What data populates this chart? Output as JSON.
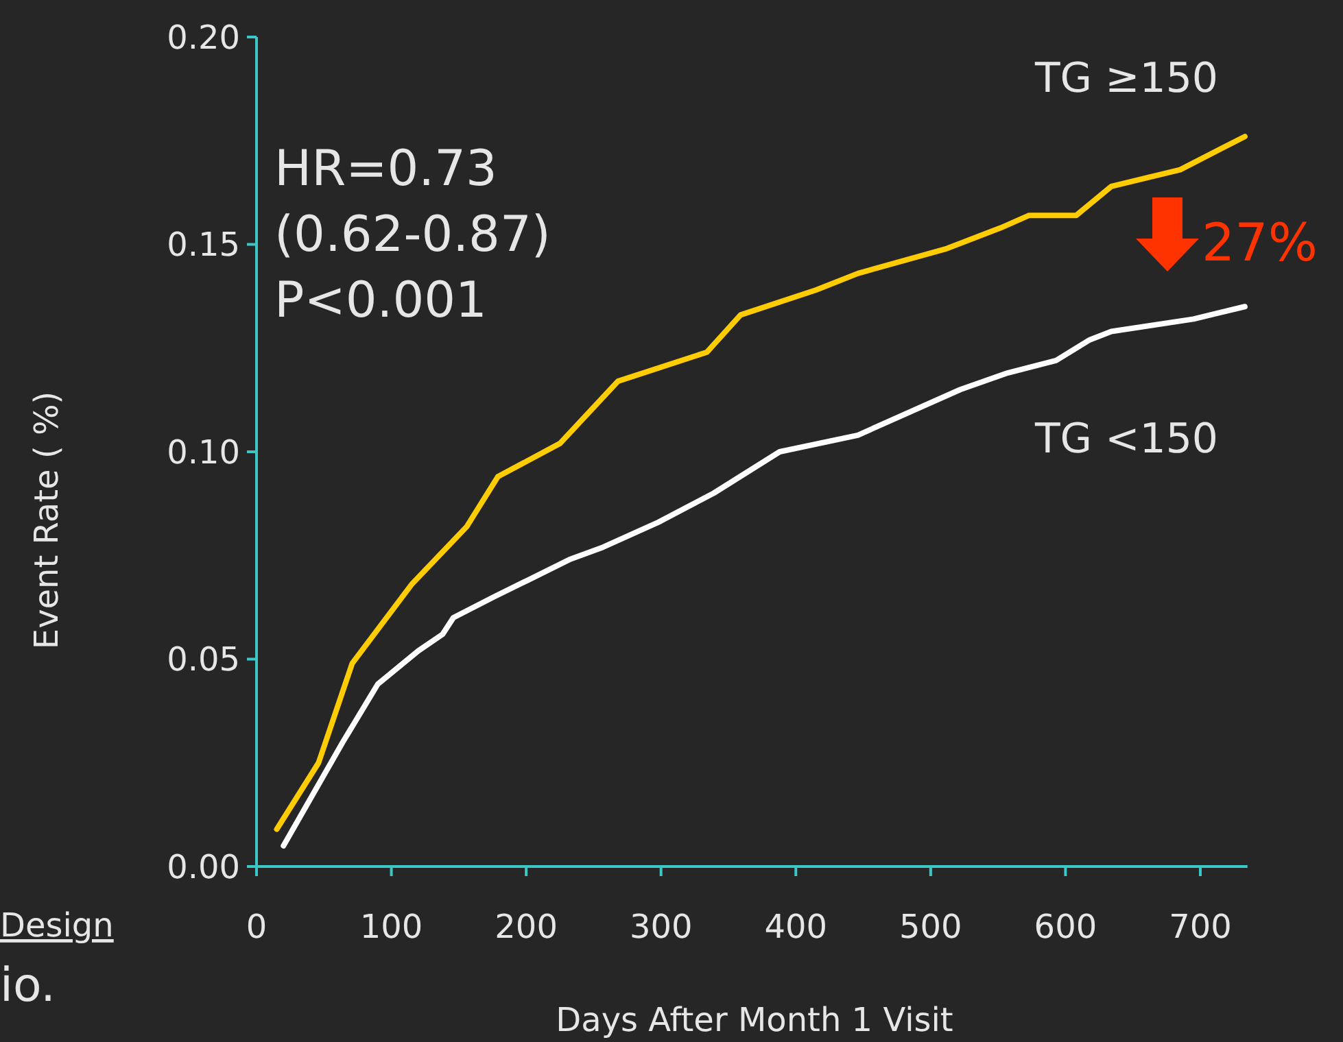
{
  "chart_data": {
    "type": "line",
    "xlabel": "Days After Month 1 Visit",
    "ylabel": "Event Rate ( %)",
    "xlim": [
      0,
      735
    ],
    "ylim": [
      0,
      0.2
    ],
    "xticks": [
      0,
      100,
      200,
      300,
      400,
      500,
      600,
      700
    ],
    "yticks": [
      {
        "value": 0,
        "label": "0.00"
      },
      {
        "value": 0.05,
        "label": "0.05"
      },
      {
        "value": 0.1,
        "label": "0.10"
      },
      {
        "value": 0.15,
        "label": "0.15"
      },
      {
        "value": 0.2,
        "label": "0.20"
      }
    ],
    "grid": false,
    "legend": false,
    "marker": "none",
    "line_style": "solid",
    "annotations": [
      "HR=0.73",
      "(0.62-0.87)",
      "P<0.001",
      "27%",
      "Design",
      "io."
    ],
    "series": [
      {
        "name": "TG ≥150",
        "color": "#ffcc00",
        "x": [
          15,
          46,
          71,
          115,
          156,
          179,
          225,
          268,
          334,
          359,
          415,
          446,
          512,
          552,
          573,
          608,
          634,
          685,
          733
        ],
        "values": [
          0.009,
          0.025,
          0.049,
          0.068,
          0.082,
          0.094,
          0.102,
          0.117,
          0.124,
          0.133,
          0.139,
          0.143,
          0.149,
          0.154,
          0.157,
          0.157,
          0.164,
          0.168,
          0.176
        ]
      },
      {
        "name": "TG <150",
        "color": "#ffffff",
        "x": [
          20,
          64,
          90,
          105,
          120,
          138,
          146,
          176,
          201,
          232,
          257,
          298,
          339,
          388,
          446,
          522,
          557,
          593,
          618,
          634,
          695,
          733
        ],
        "values": [
          0.005,
          0.03,
          0.044,
          0.048,
          0.052,
          0.056,
          0.06,
          0.065,
          0.069,
          0.074,
          0.077,
          0.083,
          0.09,
          0.1,
          0.104,
          0.115,
          0.119,
          0.122,
          0.127,
          0.129,
          0.132,
          0.135
        ]
      }
    ]
  }
}
